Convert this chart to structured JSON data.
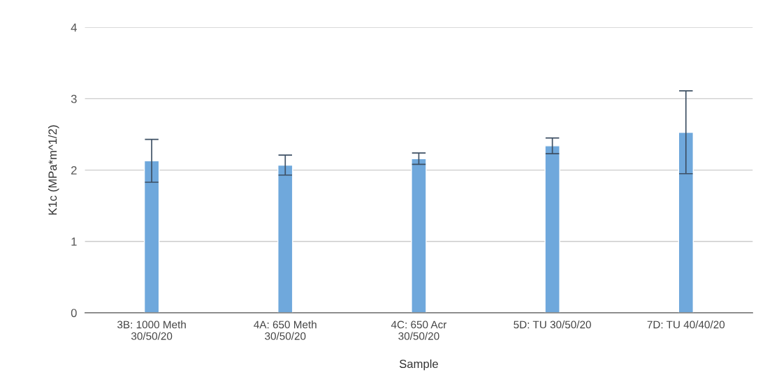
{
  "chart_data": {
    "type": "bar",
    "xlabel": "Sample",
    "ylabel": "K1c (MPa*m^1/2)",
    "categories": [
      "3B: 1000 Meth\n30/50/20",
      "4A: 650 Meth\n30/50/20",
      "4C: 650 Acr\n30/50/20",
      "5D: TU 30/50/20",
      "7D: TU 40/40/20"
    ],
    "values": [
      2.13,
      2.07,
      2.16,
      2.34,
      2.53
    ],
    "errors": [
      0.3,
      0.14,
      0.08,
      0.11,
      0.58
    ],
    "color": "#6fa8dc",
    "ylim": [
      0,
      4
    ],
    "yticks": [
      0,
      1,
      2,
      3,
      4
    ],
    "grid": "y"
  }
}
